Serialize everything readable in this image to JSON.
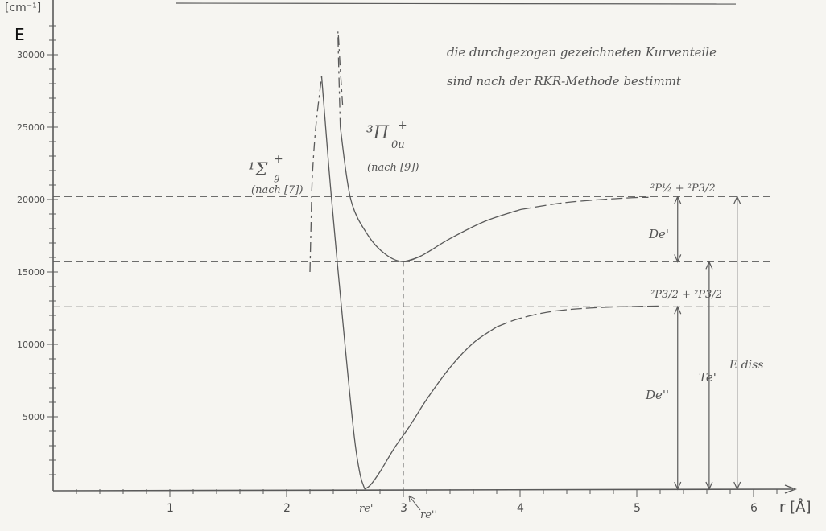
{
  "chart_data": {
    "type": "line",
    "title": "",
    "ylabel": "E",
    "yunit": "[cm⁻¹]",
    "xlabel": "r [Å]",
    "xlim": [
      0,
      6.2
    ],
    "ylim": [
      -500,
      33000
    ],
    "x_ticks": [
      1,
      2,
      3,
      4,
      5,
      6
    ],
    "x_tick_labels": [
      "1",
      "2",
      "3",
      "4",
      "5",
      "6"
    ],
    "y_ticks": [
      5000,
      10000,
      15000,
      20000,
      25000,
      30000
    ],
    "y_tick_labels": [
      "5000",
      "10000",
      "15000",
      "20000",
      "25000",
      "30000"
    ],
    "note_lines": [
      "die durchgezogen gezeichneten Kurventeile",
      "sind nach der RKR-Methode bestimmt"
    ],
    "levels": [
      {
        "name": "2P1/2+2P3/2",
        "value": 20200
      },
      {
        "name": "Te'",
        "value": 15700
      },
      {
        "name": "2P3/2+2P3/2",
        "value": 12600
      }
    ],
    "series": [
      {
        "name": "¹Σg+ (nach [7])",
        "x": [
          2.67,
          2.62,
          2.55,
          2.47,
          2.4,
          2.33,
          2.27,
          2.22,
          2.2,
          2.21,
          2.22,
          2.25,
          2.3,
          2.38,
          2.5,
          2.58,
          2.63,
          2.67,
          2.72,
          2.8,
          2.92,
          3.05,
          3.2,
          3.4,
          3.6,
          3.8,
          4.0,
          4.3,
          4.7,
          5.2
        ],
        "y": [
          0,
          350,
          1100,
          2200,
          3600,
          5500,
          8000,
          11500,
          15000,
          18500,
          21500,
          25000,
          28500,
          20500,
          10000,
          3600,
          1000,
          0,
          300,
          1200,
          2800,
          4300,
          6200,
          8400,
          10100,
          11200,
          11800,
          12300,
          12550,
          12650
        ]
      },
      {
        "name": "³Π0u+ (nach [9])",
        "x": [
          3.0,
          2.88,
          2.75,
          2.65,
          2.58,
          2.52,
          2.48,
          2.46,
          2.44,
          2.46,
          2.55,
          2.7,
          2.85,
          3.0,
          3.15,
          3.4,
          3.7,
          4.0,
          4.4,
          4.9,
          5.1
        ],
        "y": [
          15700,
          16200,
          17400,
          19300,
          21600,
          24000,
          26500,
          29000,
          31500,
          25000,
          20000,
          17500,
          16200,
          15700,
          16100,
          17300,
          18500,
          19300,
          19800,
          20100,
          20150
        ]
      }
    ],
    "annotations": {
      "state1_main": "¹Σ",
      "state1_sub": "g",
      "state1_sup": "+",
      "state1_ref": "(nach [7])",
      "state2_main": "³Π",
      "state2_sub": "0u",
      "state2_sup": "+",
      "state2_ref": "(nach [9])",
      "asym_top": "²P½ + ²P3/2",
      "asym_bottom": "²P3/2 + ²P3/2",
      "De_prime": "De'",
      "Te_prime": "Te'",
      "De_dprime": "De''",
      "E_diss": "E diss",
      "re_prime": "re'",
      "re_dprime": "re''"
    }
  }
}
